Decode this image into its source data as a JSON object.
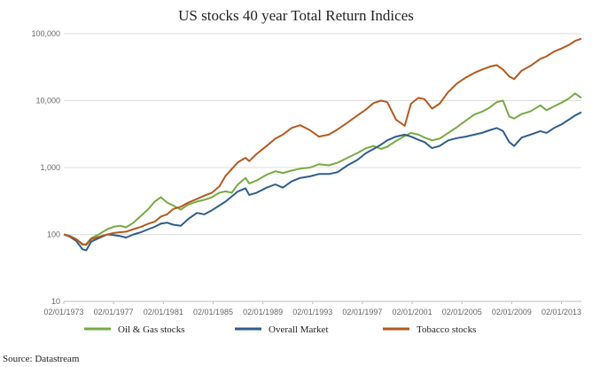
{
  "chart_data": {
    "type": "line",
    "title": "US stocks 40 year Total Return Indices",
    "xlabel": "",
    "ylabel": "",
    "yscale": "log",
    "ylim": [
      10,
      100000
    ],
    "xlim": [
      1973.0,
      2014.6
    ],
    "y_ticks": [
      {
        "value": 10,
        "label": "10"
      },
      {
        "value": 100,
        "label": "100"
      },
      {
        "value": 1000,
        "label": "1,000"
      },
      {
        "value": 10000,
        "label": "10,000"
      },
      {
        "value": 100000,
        "label": "100,000"
      }
    ],
    "x_ticks": [
      {
        "value": 1973.0,
        "label": "02/01/1973"
      },
      {
        "value": 1977.0,
        "label": "02/01/1977"
      },
      {
        "value": 1981.0,
        "label": "02/01/1981"
      },
      {
        "value": 1985.0,
        "label": "02/01/1985"
      },
      {
        "value": 1989.0,
        "label": "02/01/1989"
      },
      {
        "value": 1993.0,
        "label": "02/01/1993"
      },
      {
        "value": 1997.0,
        "label": "02/01/1997"
      },
      {
        "value": 2001.0,
        "label": "02/01/2001"
      },
      {
        "value": 2005.0,
        "label": "02/01/2005"
      },
      {
        "value": 2009.0,
        "label": "02/01/2009"
      },
      {
        "value": 2013.0,
        "label": "02/01/2013"
      }
    ],
    "grid": true,
    "legend_position": "bottom",
    "series": [
      {
        "name": "Oil & Gas stocks",
        "color": "#77ab43",
        "points": [
          [
            1973.0,
            100
          ],
          [
            1973.5,
            95
          ],
          [
            1974.0,
            85
          ],
          [
            1974.5,
            70
          ],
          [
            1974.8,
            72
          ],
          [
            1975.2,
            88
          ],
          [
            1975.8,
            100
          ],
          [
            1976.5,
            120
          ],
          [
            1977.0,
            130
          ],
          [
            1977.5,
            135
          ],
          [
            1978.0,
            128
          ],
          [
            1978.6,
            150
          ],
          [
            1979.2,
            190
          ],
          [
            1979.8,
            240
          ],
          [
            1980.3,
            310
          ],
          [
            1980.8,
            360
          ],
          [
            1981.3,
            300
          ],
          [
            1981.8,
            270
          ],
          [
            1982.4,
            235
          ],
          [
            1983.0,
            280
          ],
          [
            1983.7,
            310
          ],
          [
            1984.3,
            330
          ],
          [
            1984.9,
            360
          ],
          [
            1985.5,
            420
          ],
          [
            1986.0,
            440
          ],
          [
            1986.5,
            420
          ],
          [
            1987.0,
            560
          ],
          [
            1987.6,
            700
          ],
          [
            1987.9,
            580
          ],
          [
            1988.5,
            640
          ],
          [
            1989.3,
            780
          ],
          [
            1990.0,
            880
          ],
          [
            1990.6,
            830
          ],
          [
            1991.3,
            900
          ],
          [
            1992.0,
            960
          ],
          [
            1992.8,
            1000
          ],
          [
            1993.5,
            1120
          ],
          [
            1994.3,
            1080
          ],
          [
            1995.0,
            1180
          ],
          [
            1995.8,
            1400
          ],
          [
            1996.6,
            1650
          ],
          [
            1997.3,
            1950
          ],
          [
            1997.9,
            2100
          ],
          [
            1998.5,
            1900
          ],
          [
            1999.0,
            2050
          ],
          [
            1999.7,
            2500
          ],
          [
            2000.4,
            2950
          ],
          [
            2000.9,
            3300
          ],
          [
            2001.5,
            3100
          ],
          [
            2002.0,
            2800
          ],
          [
            2002.6,
            2550
          ],
          [
            2003.2,
            2700
          ],
          [
            2003.9,
            3300
          ],
          [
            2004.6,
            4000
          ],
          [
            2005.3,
            5000
          ],
          [
            2006.0,
            6200
          ],
          [
            2006.6,
            6800
          ],
          [
            2007.2,
            7800
          ],
          [
            2007.8,
            9500
          ],
          [
            2008.3,
            10000
          ],
          [
            2008.8,
            5800
          ],
          [
            2009.2,
            5400
          ],
          [
            2009.8,
            6300
          ],
          [
            2010.5,
            6900
          ],
          [
            2011.3,
            8500
          ],
          [
            2011.8,
            7200
          ],
          [
            2012.4,
            8200
          ],
          [
            2013.0,
            9300
          ],
          [
            2013.6,
            10800
          ],
          [
            2014.1,
            12800
          ],
          [
            2014.6,
            11000
          ]
        ]
      },
      {
        "name": "Overall Market",
        "color": "#2e5d8c",
        "points": [
          [
            1973.0,
            100
          ],
          [
            1973.5,
            92
          ],
          [
            1974.0,
            80
          ],
          [
            1974.5,
            60
          ],
          [
            1974.8,
            58
          ],
          [
            1975.2,
            78
          ],
          [
            1975.8,
            88
          ],
          [
            1976.5,
            100
          ],
          [
            1977.0,
            98
          ],
          [
            1977.5,
            95
          ],
          [
            1978.0,
            90
          ],
          [
            1978.6,
            100
          ],
          [
            1979.2,
            108
          ],
          [
            1979.8,
            120
          ],
          [
            1980.3,
            130
          ],
          [
            1980.8,
            145
          ],
          [
            1981.3,
            150
          ],
          [
            1981.8,
            140
          ],
          [
            1982.4,
            135
          ],
          [
            1983.0,
            170
          ],
          [
            1983.7,
            210
          ],
          [
            1984.3,
            200
          ],
          [
            1984.9,
            230
          ],
          [
            1985.5,
            270
          ],
          [
            1986.0,
            310
          ],
          [
            1986.5,
            370
          ],
          [
            1987.0,
            440
          ],
          [
            1987.6,
            490
          ],
          [
            1987.9,
            390
          ],
          [
            1988.5,
            420
          ],
          [
            1989.3,
            500
          ],
          [
            1990.0,
            560
          ],
          [
            1990.6,
            500
          ],
          [
            1991.3,
            620
          ],
          [
            1992.0,
            700
          ],
          [
            1992.8,
            740
          ],
          [
            1993.5,
            800
          ],
          [
            1994.3,
            800
          ],
          [
            1995.0,
            850
          ],
          [
            1995.8,
            1080
          ],
          [
            1996.6,
            1300
          ],
          [
            1997.3,
            1650
          ],
          [
            1997.9,
            1900
          ],
          [
            1998.5,
            2200
          ],
          [
            1999.0,
            2550
          ],
          [
            1999.7,
            2900
          ],
          [
            2000.4,
            3100
          ],
          [
            2000.9,
            2900
          ],
          [
            2001.5,
            2600
          ],
          [
            2002.0,
            2400
          ],
          [
            2002.6,
            1950
          ],
          [
            2003.2,
            2100
          ],
          [
            2003.9,
            2550
          ],
          [
            2004.6,
            2750
          ],
          [
            2005.3,
            2900
          ],
          [
            2006.0,
            3100
          ],
          [
            2006.6,
            3300
          ],
          [
            2007.2,
            3600
          ],
          [
            2007.8,
            3900
          ],
          [
            2008.3,
            3500
          ],
          [
            2008.8,
            2400
          ],
          [
            2009.2,
            2100
          ],
          [
            2009.8,
            2800
          ],
          [
            2010.5,
            3100
          ],
          [
            2011.3,
            3500
          ],
          [
            2011.8,
            3300
          ],
          [
            2012.4,
            3900
          ],
          [
            2013.0,
            4400
          ],
          [
            2013.6,
            5200
          ],
          [
            2014.1,
            6000
          ],
          [
            2014.6,
            6700
          ]
        ]
      },
      {
        "name": "Tobacco stocks",
        "color": "#b35a1f",
        "points": [
          [
            1973.0,
            100
          ],
          [
            1973.5,
            94
          ],
          [
            1974.0,
            85
          ],
          [
            1974.5,
            72
          ],
          [
            1974.8,
            70
          ],
          [
            1975.2,
            85
          ],
          [
            1975.8,
            92
          ],
          [
            1976.5,
            100
          ],
          [
            1977.0,
            105
          ],
          [
            1977.5,
            108
          ],
          [
            1978.0,
            110
          ],
          [
            1978.6,
            120
          ],
          [
            1979.2,
            130
          ],
          [
            1979.8,
            145
          ],
          [
            1980.3,
            155
          ],
          [
            1980.8,
            185
          ],
          [
            1981.3,
            200
          ],
          [
            1981.8,
            240
          ],
          [
            1982.4,
            260
          ],
          [
            1983.0,
            300
          ],
          [
            1983.7,
            340
          ],
          [
            1984.3,
            380
          ],
          [
            1984.9,
            420
          ],
          [
            1985.5,
            520
          ],
          [
            1986.0,
            750
          ],
          [
            1986.5,
            950
          ],
          [
            1987.0,
            1200
          ],
          [
            1987.6,
            1400
          ],
          [
            1987.9,
            1250
          ],
          [
            1988.5,
            1600
          ],
          [
            1989.3,
            2100
          ],
          [
            1990.0,
            2700
          ],
          [
            1990.6,
            3100
          ],
          [
            1991.3,
            3900
          ],
          [
            1992.0,
            4300
          ],
          [
            1992.8,
            3600
          ],
          [
            1993.5,
            2900
          ],
          [
            1994.3,
            3100
          ],
          [
            1995.0,
            3700
          ],
          [
            1995.8,
            4700
          ],
          [
            1996.6,
            6000
          ],
          [
            1997.3,
            7400
          ],
          [
            1997.9,
            9200
          ],
          [
            1998.5,
            10000
          ],
          [
            1999.0,
            9500
          ],
          [
            1999.7,
            5200
          ],
          [
            2000.4,
            4200
          ],
          [
            2000.9,
            9000
          ],
          [
            2001.5,
            11000
          ],
          [
            2002.0,
            10500
          ],
          [
            2002.6,
            7600
          ],
          [
            2003.2,
            9000
          ],
          [
            2003.9,
            13500
          ],
          [
            2004.6,
            18000
          ],
          [
            2005.3,
            22000
          ],
          [
            2006.0,
            26000
          ],
          [
            2006.6,
            29000
          ],
          [
            2007.2,
            32000
          ],
          [
            2007.8,
            34000
          ],
          [
            2008.3,
            29000
          ],
          [
            2008.8,
            23000
          ],
          [
            2009.2,
            21000
          ],
          [
            2009.8,
            28000
          ],
          [
            2010.5,
            33000
          ],
          [
            2011.3,
            42000
          ],
          [
            2011.8,
            46000
          ],
          [
            2012.4,
            54000
          ],
          [
            2013.0,
            60000
          ],
          [
            2013.6,
            68000
          ],
          [
            2014.1,
            78000
          ],
          [
            2014.6,
            84000
          ]
        ]
      }
    ]
  },
  "source": "Source: Datastream"
}
